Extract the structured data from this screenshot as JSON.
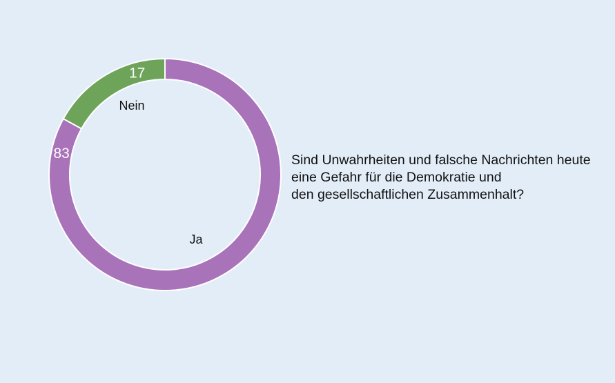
{
  "chart_data": {
    "type": "pie",
    "subtype": "donut",
    "title": "",
    "question_lines": [
      "Sind Unwahrheiten und falsche Nachrichten heute",
      "eine Gefahr für die Demokratie und",
      "den gesellschaftlichen Zusammenhalt?"
    ],
    "slices": [
      {
        "label": "Ja",
        "value": 83,
        "value_label": "83",
        "color": "#a873b8"
      },
      {
        "label": "Nein",
        "value": 17,
        "value_label": "17",
        "color": "#6ea35a"
      }
    ],
    "legend": "none",
    "background": "#e3edf8"
  }
}
